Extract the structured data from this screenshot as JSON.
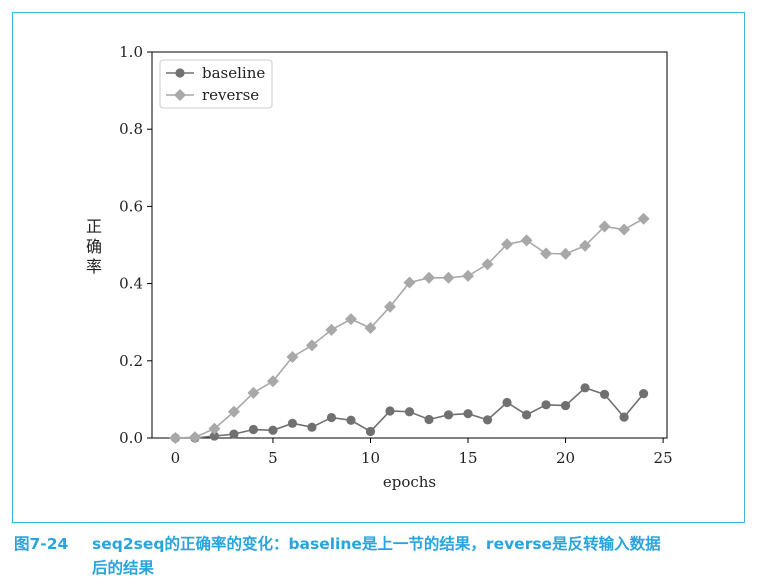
{
  "caption": {
    "figure_number": "图7-24",
    "line1": "seq2seq的正确率的变化：baseline是上一节的结果，reverse是反转输入数据",
    "line2": "后的结果"
  },
  "chart_data": {
    "type": "line",
    "xlabel": "epochs",
    "ylabel": "正确率",
    "xlim": [
      -1.2,
      25.2
    ],
    "ylim": [
      0,
      1.0
    ],
    "xticks": [
      0,
      5,
      10,
      15,
      20,
      25
    ],
    "yticks": [
      0.0,
      0.2,
      0.4,
      0.6,
      0.8,
      1.0
    ],
    "xtick_labels": [
      "0",
      "5",
      "10",
      "15",
      "20",
      "25"
    ],
    "ytick_labels": [
      "0.0",
      "0.2",
      "0.4",
      "0.6",
      "0.8",
      "1.0"
    ],
    "legend_position": "top-left",
    "grid": false,
    "x": [
      0,
      1,
      2,
      3,
      4,
      5,
      6,
      7,
      8,
      9,
      10,
      11,
      12,
      13,
      14,
      15,
      16,
      17,
      18,
      19,
      20,
      21,
      22,
      23,
      24
    ],
    "series": [
      {
        "name": "baseline",
        "marker": "circle",
        "color": "#707070",
        "values": [
          0.0,
          0.0,
          0.005,
          0.01,
          0.022,
          0.02,
          0.038,
          0.028,
          0.053,
          0.046,
          0.017,
          0.07,
          0.068,
          0.048,
          0.06,
          0.063,
          0.047,
          0.092,
          0.06,
          0.086,
          0.084,
          0.13,
          0.113,
          0.054,
          0.115
        ]
      },
      {
        "name": "reverse",
        "marker": "diamond",
        "color": "#a8a8a8",
        "values": [
          0.0,
          0.002,
          0.024,
          0.068,
          0.117,
          0.147,
          0.21,
          0.24,
          0.28,
          0.308,
          0.285,
          0.34,
          0.403,
          0.415,
          0.415,
          0.42,
          0.45,
          0.502,
          0.512,
          0.478,
          0.477,
          0.498,
          0.548,
          0.54,
          0.568
        ]
      }
    ]
  }
}
